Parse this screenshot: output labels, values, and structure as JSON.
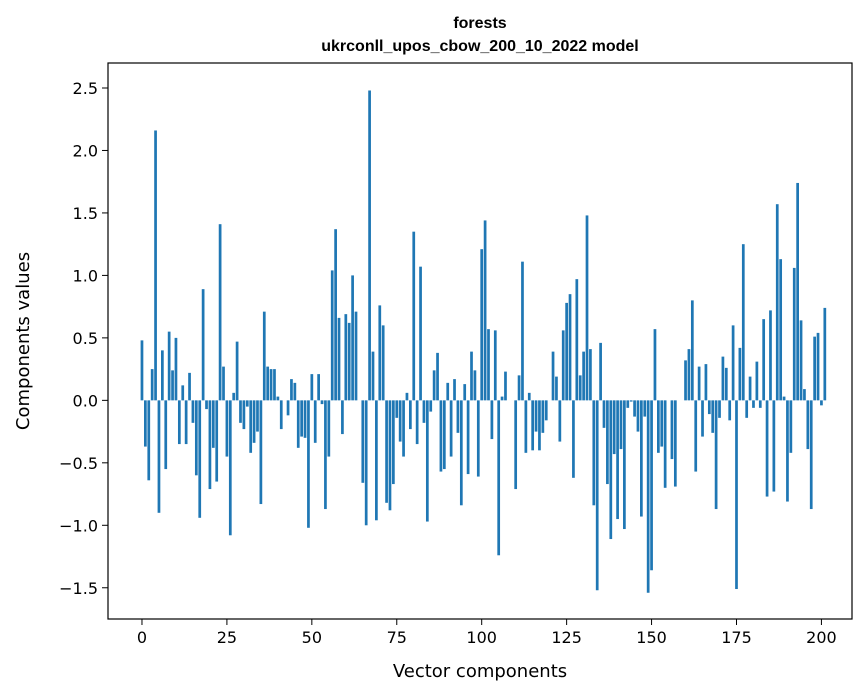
{
  "chart_data": {
    "type": "bar",
    "title": "forests",
    "subtitle": "ukrconll_upos_cbow_200_10_2022 model",
    "xlabel": "Vector components",
    "ylabel": "Components values",
    "xlim": [
      -10,
      209
    ],
    "ylim": [
      -1.75,
      2.7
    ],
    "xticks": [
      0,
      25,
      50,
      75,
      100,
      125,
      150,
      175,
      200
    ],
    "yticks": [
      -1.5,
      -1.0,
      -0.5,
      0.0,
      0.5,
      1.0,
      1.5,
      2.0,
      2.5
    ],
    "ytick_labels": [
      "−1.5",
      "−1.0",
      "−0.5",
      "0.0",
      "0.5",
      "1.0",
      "1.5",
      "2.0",
      "2.5"
    ],
    "bar_color": "#1f77b4",
    "grid": false,
    "values": [
      0.48,
      -0.37,
      -0.64,
      0.25,
      2.16,
      -0.9,
      0.4,
      -0.55,
      0.55,
      0.24,
      0.5,
      -0.35,
      0.12,
      -0.35,
      0.22,
      -0.18,
      -0.6,
      -0.94,
      0.89,
      -0.07,
      -0.71,
      -0.38,
      -0.65,
      1.41,
      0.27,
      -0.45,
      -1.08,
      0.06,
      0.47,
      -0.18,
      -0.23,
      -0.05,
      -0.42,
      -0.34,
      -0.25,
      -0.83,
      0.71,
      0.27,
      0.25,
      0.25,
      0.03,
      -0.23,
      0.0,
      -0.12,
      0.17,
      0.14,
      -0.38,
      -0.29,
      -0.3,
      -1.02,
      0.21,
      -0.34,
      0.21,
      -0.03,
      -0.87,
      -0.45,
      1.04,
      1.37,
      0.66,
      -0.27,
      0.69,
      0.62,
      1.0,
      0.71,
      0.0,
      -0.66,
      -1.0,
      2.48,
      0.39,
      -0.96,
      0.76,
      0.6,
      -0.82,
      -0.88,
      -0.67,
      -0.14,
      -0.33,
      -0.45,
      0.06,
      -0.23,
      1.35,
      -0.35,
      1.07,
      -0.18,
      -0.97,
      -0.09,
      0.24,
      0.38,
      -0.57,
      -0.55,
      0.14,
      -0.45,
      0.17,
      -0.26,
      -0.84,
      0.13,
      -0.59,
      0.39,
      0.24,
      -0.61,
      1.21,
      1.44,
      0.57,
      -0.31,
      0.56,
      -1.24,
      0.03,
      0.23,
      0.0,
      0.0,
      -0.71,
      0.2,
      1.11,
      -0.42,
      0.06,
      -0.4,
      -0.25,
      -0.4,
      -0.26,
      -0.16,
      0.0,
      0.39,
      0.19,
      -0.33,
      0.56,
      0.78,
      0.85,
      -0.62,
      0.97,
      0.2,
      0.39,
      1.48,
      0.41,
      -0.84,
      -1.52,
      0.46,
      -0.22,
      -0.67,
      -1.11,
      -0.43,
      -0.95,
      -0.39,
      -1.03,
      -0.06,
      -0.01,
      -0.13,
      -0.25,
      -0.93,
      -0.13,
      -1.54,
      -1.36,
      0.57,
      -0.42,
      -0.37,
      -0.7,
      0.0,
      -0.47,
      -0.69,
      0.0,
      0.0,
      0.32,
      0.41,
      0.8,
      -0.57,
      0.27,
      -0.29,
      0.29,
      -0.11,
      -0.26,
      -0.87,
      -0.14,
      0.35,
      0.26,
      -0.16,
      0.6,
      -1.51,
      0.42,
      1.25,
      -0.14,
      0.19,
      -0.06,
      0.31,
      -0.06,
      0.65,
      -0.77,
      0.72,
      -0.73,
      1.57,
      1.13,
      0.03,
      -0.81,
      -0.42,
      1.06,
      1.74,
      0.64,
      0.09,
      -0.39,
      -0.87,
      0.51,
      0.54,
      -0.04,
      0.74
    ]
  }
}
